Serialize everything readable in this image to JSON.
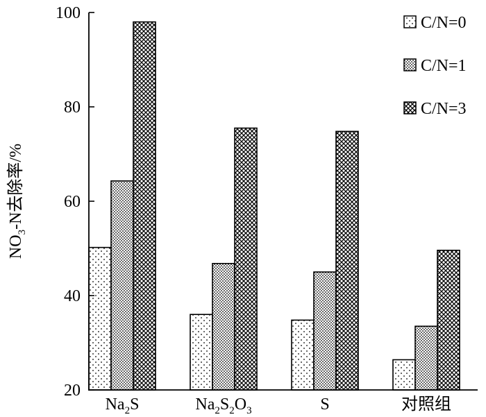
{
  "chart_data": {
    "type": "bar",
    "title": "",
    "xlabel": "",
    "ylabel": {
      "main": "NO",
      "sub": "3",
      "rest": "-N去除率/%"
    },
    "ylim": [
      20,
      100
    ],
    "yticks": [
      "20",
      "40",
      "60",
      "80",
      "100"
    ],
    "categories": [
      {
        "main": "Na",
        "sub": "2",
        "rest": "S",
        "sub2": "",
        "rest2": ""
      },
      {
        "main": "Na",
        "sub": "2",
        "rest": "S",
        "sub2": "2",
        "rest2": "O",
        "sub3": "3"
      },
      {
        "main": "S",
        "sub": "",
        "rest": "",
        "sub2": "",
        "rest2": ""
      },
      {
        "main": "对照组",
        "sub": "",
        "rest": "",
        "sub2": "",
        "rest2": ""
      }
    ],
    "series": [
      {
        "name": "C/N=0",
        "values": [
          50.2,
          36.0,
          34.8,
          26.4
        ]
      },
      {
        "name": "C/N=1",
        "values": [
          64.3,
          46.8,
          45.0,
          33.5
        ]
      },
      {
        "name": "C/N=3",
        "values": [
          98.0,
          75.5,
          74.8,
          49.6
        ]
      }
    ],
    "legend_position": "top-right",
    "grid": false,
    "colors": {
      "axis": "#000000",
      "fill": "#ffffff"
    }
  }
}
